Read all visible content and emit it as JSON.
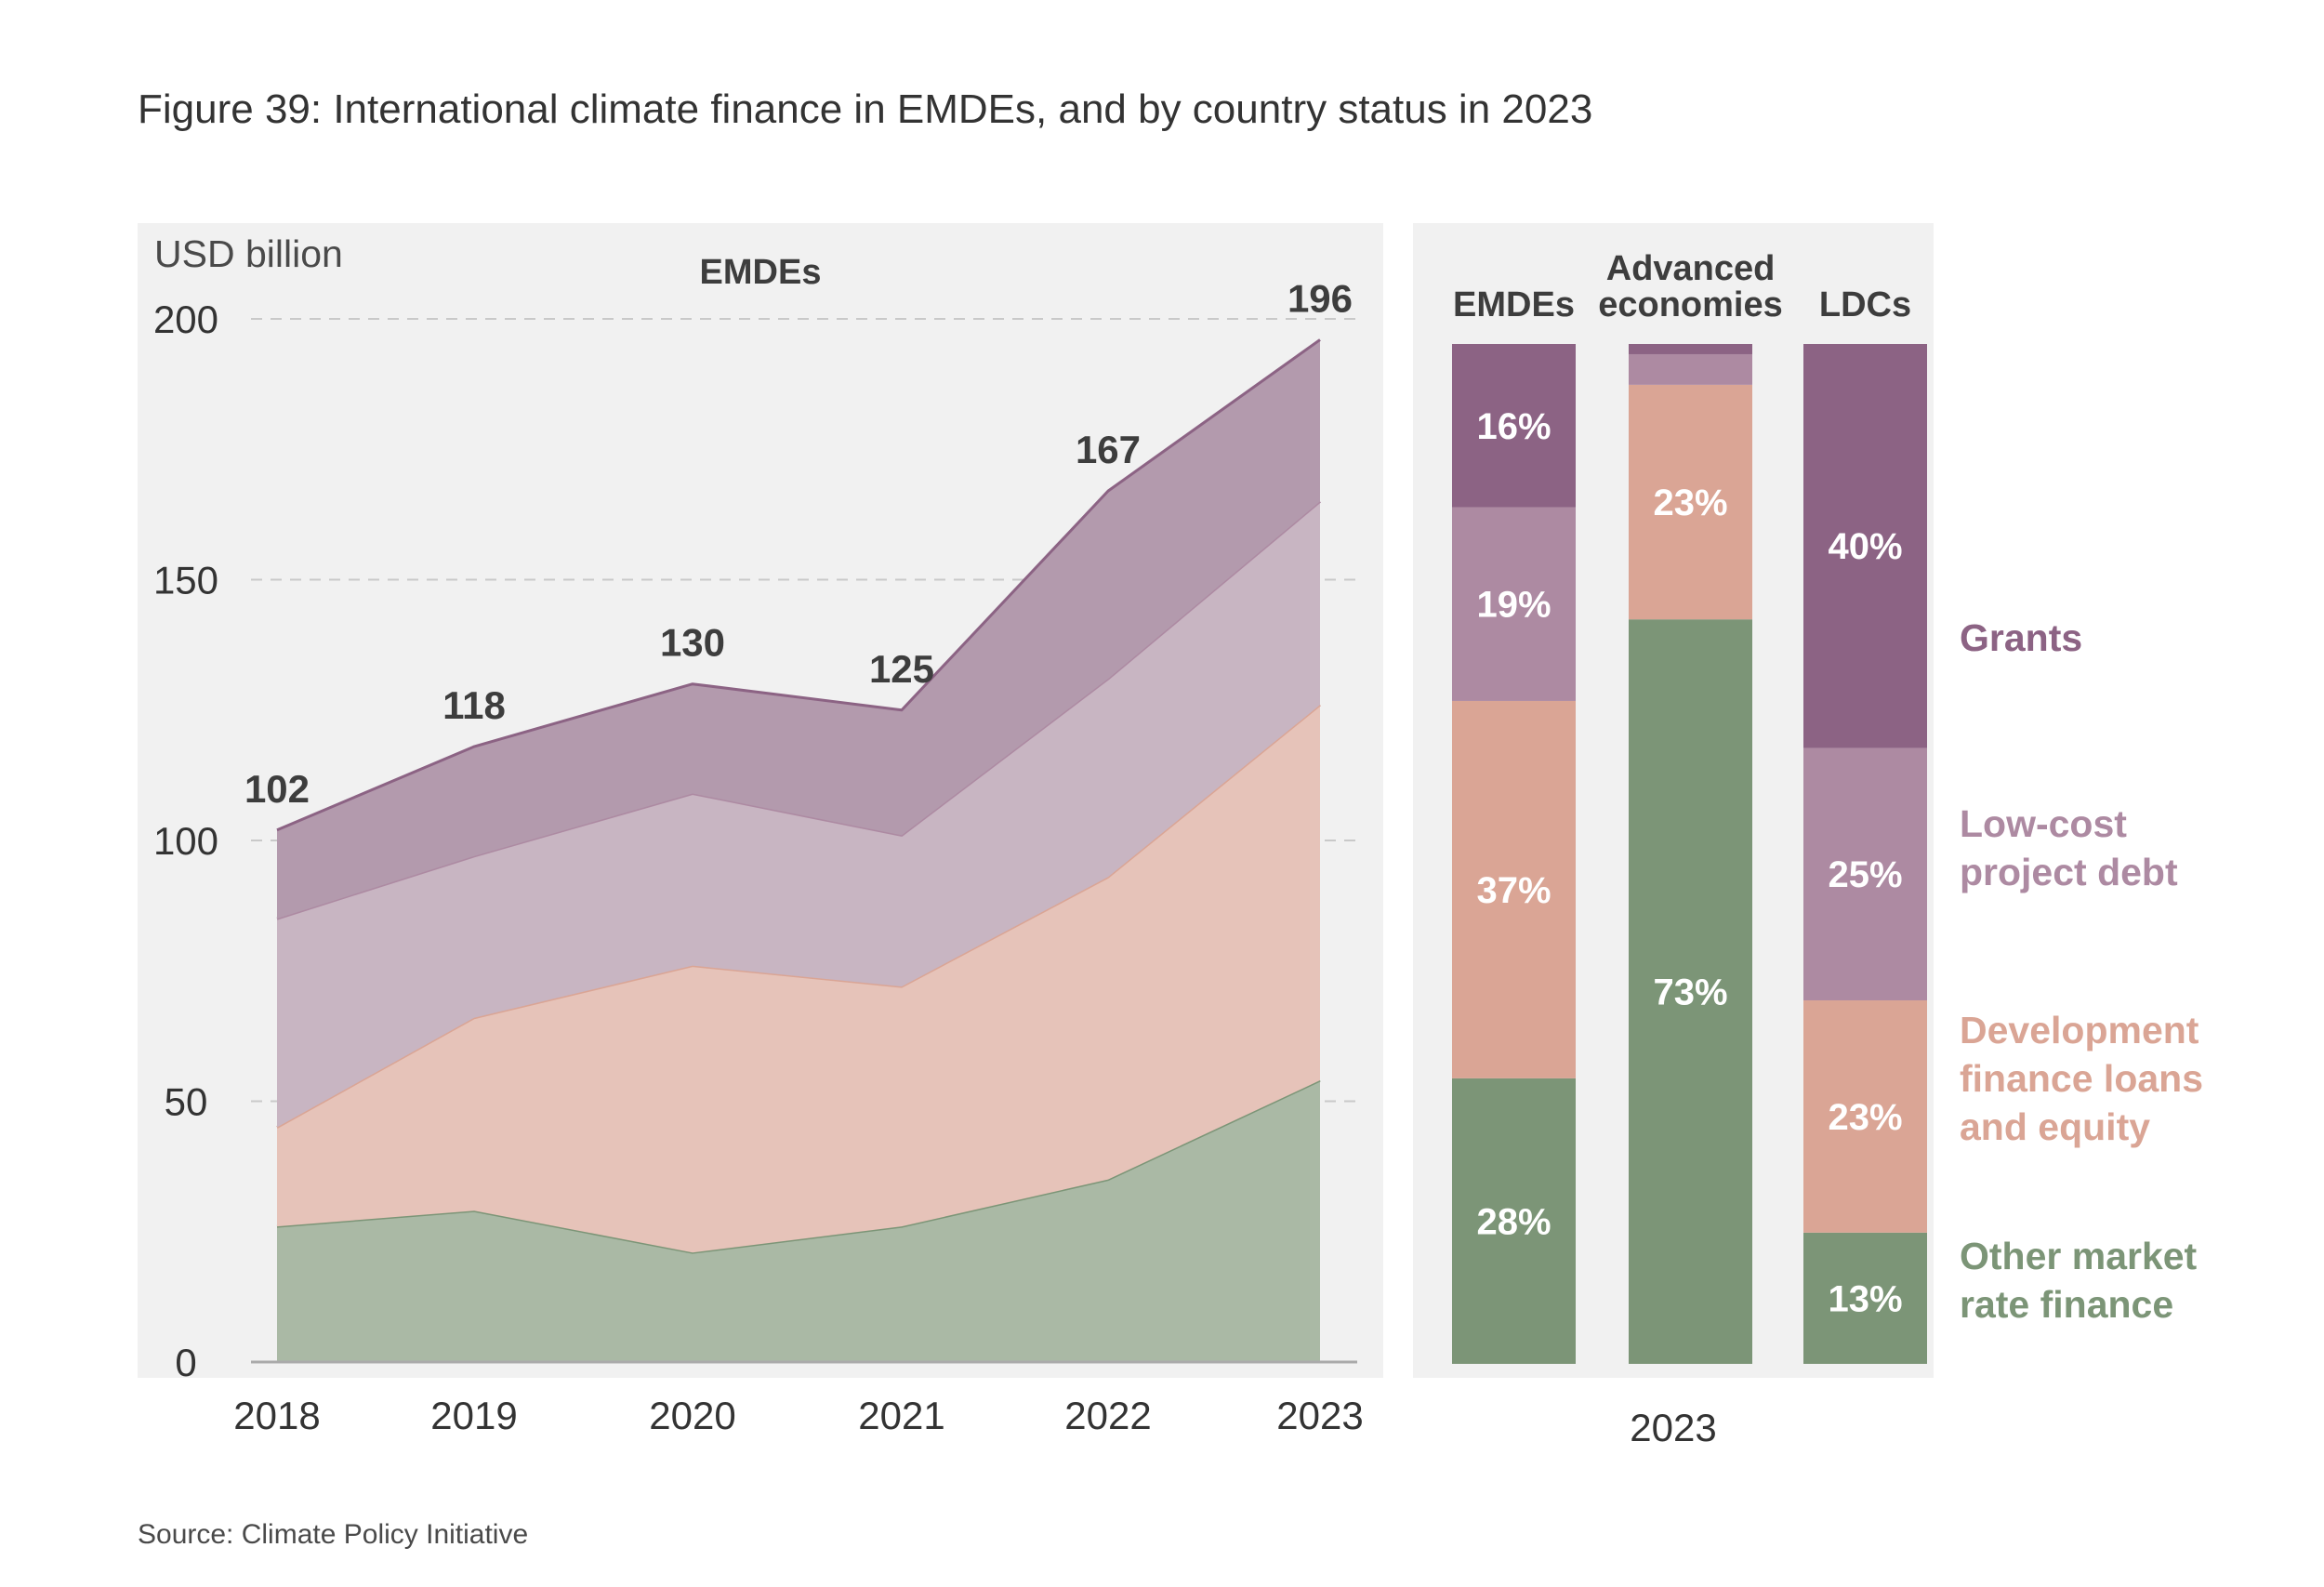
{
  "title": "Figure 39: International climate finance in EMDEs, and by country status in 2023",
  "source": "Source: Climate Policy Initiative",
  "colors": {
    "grants": "#8c6384",
    "low_cost": "#ad8aa2",
    "dev_finance": "#daa595",
    "market_rate": "#7c9577",
    "grants_light": "#b39aad",
    "low_cost_light": "#c8b5c2",
    "dev_finance_light": "#e6c3b9",
    "market_rate_light": "#aab9a5",
    "panel_bg": "#f1f1f1"
  },
  "chart_data": [
    {
      "type": "area",
      "stacked": true,
      "title": "EMDEs",
      "ylabel": "USD billion",
      "x": [
        "2018",
        "2019",
        "2020",
        "2021",
        "2022",
        "2023"
      ],
      "ylim": [
        0,
        200
      ],
      "yticks": [
        0,
        50,
        100,
        150,
        200
      ],
      "grid": true,
      "totals": [
        102,
        118,
        130,
        125,
        167,
        196
      ],
      "series": [
        {
          "key": "market_rate",
          "name": "Other market rate finance",
          "values": [
            26,
            29,
            21,
            26,
            35,
            54
          ]
        },
        {
          "key": "dev_finance",
          "name": "Development finance loans and equity",
          "values": [
            19,
            37,
            55,
            46,
            58,
            72
          ]
        },
        {
          "key": "low_cost",
          "name": "Low-cost project debt",
          "values": [
            40,
            31,
            33,
            29,
            38,
            39
          ]
        },
        {
          "key": "grants",
          "name": "Grants",
          "values": [
            17,
            21,
            21,
            24,
            36,
            31
          ]
        }
      ]
    },
    {
      "type": "bar",
      "stacked": true,
      "percent": true,
      "xlabel": "2023",
      "categories": [
        "EMDEs",
        "Advanced economies",
        "LDCs"
      ],
      "series": [
        {
          "key": "market_rate",
          "name": "Other market rate finance",
          "values": [
            28,
            73,
            13
          ]
        },
        {
          "key": "dev_finance",
          "name": "Development finance loans and equity",
          "values": [
            37,
            23,
            23
          ]
        },
        {
          "key": "low_cost",
          "name": "Low-cost project debt",
          "values": [
            19,
            3,
            25
          ]
        },
        {
          "key": "grants",
          "name": "Grants",
          "values": [
            16,
            1,
            40
          ]
        }
      ],
      "labels": [
        {
          "category": 0,
          "series": 0,
          "text": "28%"
        },
        {
          "category": 0,
          "series": 1,
          "text": "37%"
        },
        {
          "category": 0,
          "series": 2,
          "text": "19%"
        },
        {
          "category": 0,
          "series": 3,
          "text": "16%"
        },
        {
          "category": 1,
          "series": 0,
          "text": "73%"
        },
        {
          "category": 1,
          "series": 1,
          "text": "23%"
        },
        {
          "category": 2,
          "series": 0,
          "text": "13%"
        },
        {
          "category": 2,
          "series": 1,
          "text": "23%"
        },
        {
          "category": 2,
          "series": 2,
          "text": "25%"
        },
        {
          "category": 2,
          "series": 3,
          "text": "40%"
        }
      ],
      "category_labels": [
        [
          "EMDEs"
        ],
        [
          "Advanced",
          "economies"
        ],
        [
          "LDCs"
        ]
      ],
      "legend": [
        {
          "key": "grants",
          "lines": [
            "Grants"
          ]
        },
        {
          "key": "low_cost",
          "lines": [
            "Low-cost",
            "project debt"
          ]
        },
        {
          "key": "dev_finance",
          "lines": [
            "Development",
            "finance loans",
            "and equity"
          ]
        },
        {
          "key": "market_rate",
          "lines": [
            "Other market",
            "rate finance"
          ]
        }
      ]
    }
  ]
}
